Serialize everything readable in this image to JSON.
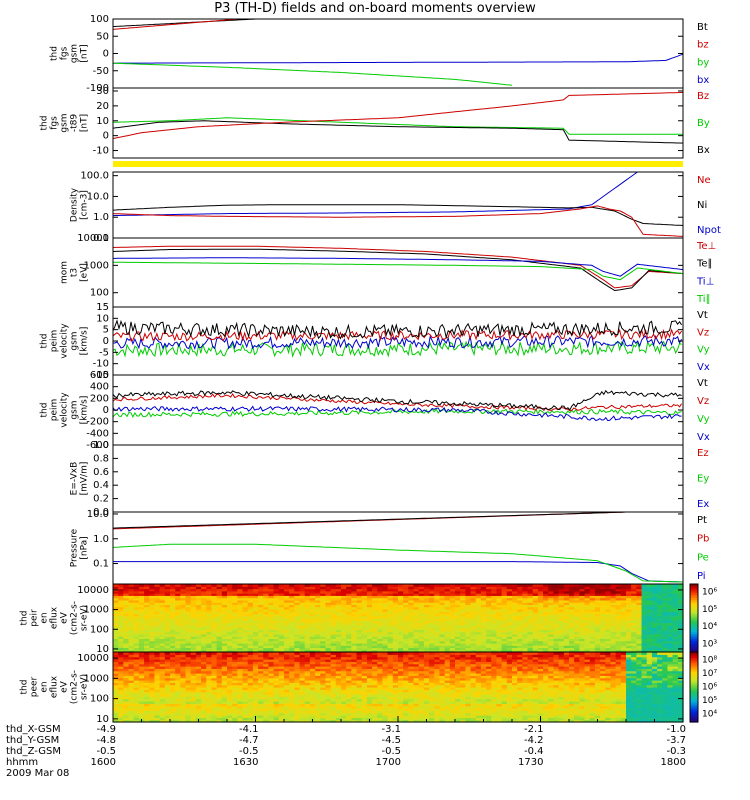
{
  "title": "P3 (TH-D) fields and on-board moments overview",
  "date": "2009 Mar 08",
  "chart_data": [
    {
      "type": "line",
      "ylabel": [
        "thd",
        "fgs",
        "gsm",
        "[nT]"
      ],
      "ylim": [
        -100,
        100
      ],
      "ticks": [
        "100",
        "50",
        "0",
        "-50",
        "-100"
      ],
      "tick_values": [
        100,
        50,
        0,
        -50,
        -100
      ],
      "legend": [
        {
          "name": "Bt",
          "color": "#000000"
        },
        {
          "name": "bz",
          "color": "#cc0000"
        },
        {
          "name": "by",
          "color": "#00cc00"
        },
        {
          "name": "bx",
          "color": "#0000cc"
        }
      ],
      "series": [
        {
          "name": "Bt",
          "color": "#000000",
          "x": [
            0,
            25
          ],
          "values": [
            78,
            100
          ]
        },
        {
          "name": "bz",
          "color": "#cc0000",
          "x": [
            0,
            22
          ],
          "values": [
            70,
            100
          ]
        },
        {
          "name": "bx",
          "color": "#0000cc",
          "x": [
            0,
            90,
            97,
            100
          ],
          "values": [
            -28,
            -24,
            -20,
            -2
          ]
        },
        {
          "name": "by",
          "color": "#00cc00",
          "x": [
            0,
            20,
            40,
            60,
            70
          ],
          "values": [
            -28,
            -40,
            -55,
            -75,
            -92
          ]
        }
      ]
    },
    {
      "type": "line",
      "ylabel": [
        "thd",
        "fgs",
        "gsm",
        "-t89",
        "[nT]"
      ],
      "ylim": [
        -15,
        32
      ],
      "ticks": [
        "30",
        "20",
        "10",
        "0",
        "-10"
      ],
      "tick_values": [
        30,
        20,
        10,
        0,
        -10
      ],
      "legend": [
        {
          "name": "Bz",
          "color": "#cc0000"
        },
        {
          "name": "By",
          "color": "#00cc00"
        },
        {
          "name": "Bx",
          "color": "#000000"
        }
      ],
      "series": [
        {
          "name": "By",
          "color": "#00cc00",
          "x": [
            0,
            10,
            20,
            40,
            60,
            79,
            80,
            100
          ],
          "values": [
            9,
            10,
            12,
            9,
            6,
            5,
            1,
            1
          ]
        },
        {
          "name": "Bx",
          "color": "#000000",
          "x": [
            0,
            8,
            16,
            30,
            50,
            70,
            79,
            80,
            100
          ],
          "values": [
            5,
            9,
            10,
            8,
            6,
            5,
            4,
            -3,
            -5
          ]
        },
        {
          "name": "Bz",
          "color": "#cc0000",
          "x": [
            0,
            5,
            15,
            30,
            50,
            70,
            79,
            80,
            90,
            100
          ],
          "values": [
            -2,
            2,
            6,
            9,
            12,
            20,
            24,
            27,
            28,
            29
          ]
        }
      ]
    },
    {
      "type": "line",
      "scale": "log",
      "ylabel": [
        "Density",
        "[cm-3]"
      ],
      "ylim": [
        0.1,
        150
      ],
      "ticks": [
        "100.0",
        "10.0",
        "1.0",
        "0.1"
      ],
      "tick_values": [
        100,
        10,
        1,
        0.1
      ],
      "legend": [
        {
          "name": "Ne",
          "color": "#cc0000"
        },
        {
          "name": "Ni",
          "color": "#000000"
        },
        {
          "name": "Npot",
          "color": "#0000cc"
        }
      ],
      "series": [
        {
          "name": "Npot",
          "color": "#0000cc",
          "x": [
            0,
            20,
            40,
            60,
            80,
            84,
            92
          ],
          "values": [
            1.2,
            1.5,
            1.6,
            1.8,
            2.5,
            4,
            150
          ]
        },
        {
          "name": "Ni",
          "color": "#000000",
          "x": [
            0,
            10,
            20,
            30,
            40,
            50,
            60,
            70,
            80,
            84,
            88,
            91,
            93,
            100
          ],
          "values": [
            2.2,
            3,
            3.8,
            4,
            4,
            4,
            3.6,
            3.2,
            2.8,
            3,
            2,
            0.8,
            0.5,
            0.4
          ]
        },
        {
          "name": "Ne",
          "color": "#cc0000",
          "x": [
            0,
            10,
            20,
            40,
            60,
            75,
            82,
            85,
            87,
            89,
            91,
            93,
            100
          ],
          "values": [
            1.5,
            1.2,
            1.1,
            1.0,
            1.1,
            1.5,
            2.5,
            3.5,
            2.5,
            2,
            1,
            0.15,
            0.12
          ]
        }
      ]
    },
    {
      "type": "line",
      "scale": "log",
      "ylabel": [
        "mom",
        "t3",
        "[eV]"
      ],
      "ylim": [
        30,
        10000
      ],
      "ticks": [
        "10000",
        "1000",
        "100"
      ],
      "tick_values": [
        10000,
        1000,
        100
      ],
      "legend": [
        {
          "name": "Te⊥",
          "color": "#cc0000"
        },
        {
          "name": "Te∥",
          "color": "#000000"
        },
        {
          "name": "Ti⊥",
          "color": "#0000cc"
        },
        {
          "name": "Ti∥",
          "color": "#00cc00"
        }
      ],
      "series": [
        {
          "name": "Te⊥",
          "color": "#cc0000",
          "x": [
            0,
            10,
            25,
            40,
            55,
            70,
            82,
            86,
            88,
            91,
            94,
            100
          ],
          "values": [
            4500,
            5000,
            5000,
            4200,
            3200,
            2000,
            1000,
            300,
            150,
            180,
            600,
            500
          ]
        },
        {
          "name": "Te∥",
          "color": "#000000",
          "x": [
            0,
            10,
            25,
            40,
            55,
            70,
            82,
            86,
            88,
            91,
            94,
            100
          ],
          "values": [
            3200,
            3800,
            3900,
            3300,
            2600,
            1600,
            800,
            220,
            120,
            150,
            650,
            500
          ]
        },
        {
          "name": "Ti⊥",
          "color": "#0000cc",
          "x": [
            0,
            20,
            40,
            60,
            75,
            84,
            86,
            89,
            92,
            100
          ],
          "values": [
            1800,
            1900,
            1800,
            1600,
            1400,
            1000,
            600,
            400,
            1100,
            700
          ]
        },
        {
          "name": "Ti∥",
          "color": "#00cc00",
          "x": [
            0,
            20,
            40,
            60,
            75,
            84,
            86,
            89,
            92,
            100
          ],
          "values": [
            1300,
            1200,
            1100,
            1000,
            900,
            700,
            400,
            300,
            800,
            500
          ]
        }
      ]
    },
    {
      "type": "line",
      "noisy": true,
      "ylabel": [
        "thd",
        "peim",
        "velocity",
        "gsm",
        "[km/s]"
      ],
      "ylim": [
        -15,
        15
      ],
      "ticks": [
        "15",
        "10",
        "5",
        "0",
        "-5",
        "-10",
        "-15"
      ],
      "tick_values": [
        15,
        10,
        5,
        0,
        -5,
        -10,
        -15
      ],
      "legend": [
        {
          "name": "Vt",
          "color": "#000000"
        },
        {
          "name": "Vz",
          "color": "#cc0000"
        },
        {
          "name": "Vy",
          "color": "#00cc00"
        },
        {
          "name": "Vx",
          "color": "#0000cc"
        }
      ],
      "series": [
        {
          "name": "Vy",
          "color": "#00cc00",
          "x": [
            0,
            100
          ],
          "values": [
            -4,
            -3
          ],
          "noise": 3
        },
        {
          "name": "Vx",
          "color": "#0000cc",
          "x": [
            0,
            100
          ],
          "values": [
            -1,
            0
          ],
          "noise": 2.5
        },
        {
          "name": "Vz",
          "color": "#cc0000",
          "x": [
            0,
            100
          ],
          "values": [
            2,
            3
          ],
          "noise": 2
        },
        {
          "name": "Vt",
          "color": "#000000",
          "x": [
            0,
            40,
            100
          ],
          "values": [
            6,
            4,
            6
          ],
          "noise": 3
        }
      ]
    },
    {
      "type": "line",
      "noisy": true,
      "ylabel": [
        "thd",
        "peim",
        "velocity",
        "gsm",
        "[km/s]"
      ],
      "ylim": [
        -600,
        600
      ],
      "ticks": [
        "600",
        "400",
        "200",
        "0",
        "-200",
        "-400",
        "-600"
      ],
      "tick_values": [
        600,
        400,
        200,
        0,
        -200,
        -400,
        -600
      ],
      "legend": [
        {
          "name": "Vt",
          "color": "#000000"
        },
        {
          "name": "Vz",
          "color": "#cc0000"
        },
        {
          "name": "Vy",
          "color": "#00cc00"
        },
        {
          "name": "Vx",
          "color": "#0000cc"
        }
      ],
      "series": [
        {
          "name": "Vy",
          "color": "#00cc00",
          "x": [
            0,
            30,
            60,
            86,
            100
          ],
          "values": [
            -80,
            -60,
            -20,
            -30,
            -50
          ],
          "noise": 40
        },
        {
          "name": "Vx",
          "color": "#0000cc",
          "x": [
            0,
            30,
            60,
            86,
            100
          ],
          "values": [
            20,
            20,
            0,
            -150,
            -100
          ],
          "noise": 40
        },
        {
          "name": "Vz",
          "color": "#cc0000",
          "x": [
            0,
            20,
            50,
            80,
            86,
            100
          ],
          "values": [
            180,
            250,
            100,
            10,
            50,
            80
          ],
          "noise": 30
        },
        {
          "name": "Vt",
          "color": "#000000",
          "x": [
            0,
            20,
            50,
            80,
            86,
            100
          ],
          "values": [
            250,
            300,
            150,
            30,
            300,
            250
          ],
          "noise": 40
        }
      ]
    },
    {
      "type": "line",
      "ylabel": [
        "E=-VxB",
        "[mV/m]"
      ],
      "ylim": [
        0,
        1
      ],
      "ticks": [
        "1.0",
        "0.8",
        "0.6",
        "0.4",
        "0.2",
        "0.0"
      ],
      "tick_values": [
        1,
        0.8,
        0.6,
        0.4,
        0.2,
        0
      ],
      "legend": [
        {
          "name": "Ez",
          "color": "#cc0000"
        },
        {
          "name": "Ey",
          "color": "#00cc00"
        },
        {
          "name": "Ex",
          "color": "#0000cc"
        }
      ],
      "series": []
    },
    {
      "type": "line",
      "scale": "log",
      "ylabel": [
        "Pressure",
        "[nPa]"
      ],
      "ylim": [
        0.015,
        12
      ],
      "ticks": [
        "10.0",
        "1.0",
        "0.1"
      ],
      "tick_values": [
        10,
        1,
        0.1
      ],
      "legend": [
        {
          "name": "Pt",
          "color": "#000000"
        },
        {
          "name": "Pb",
          "color": "#cc0000"
        },
        {
          "name": "Pe",
          "color": "#00cc00"
        },
        {
          "name": "Pi",
          "color": "#0000cc"
        }
      ],
      "series": [
        {
          "name": "Pi",
          "color": "#0000cc",
          "x": [
            0,
            40,
            70,
            85,
            89,
            91,
            94,
            100
          ],
          "values": [
            0.12,
            0.12,
            0.12,
            0.11,
            0.08,
            0.04,
            0.02,
            0.018
          ]
        },
        {
          "name": "Pe",
          "color": "#00cc00",
          "x": [
            0,
            10,
            25,
            50,
            70,
            85,
            90,
            93,
            100
          ],
          "values": [
            0.45,
            0.6,
            0.6,
            0.35,
            0.25,
            0.13,
            0.05,
            0.02,
            0.018
          ]
        },
        {
          "name": "Pb",
          "color": "#cc0000",
          "x": [
            0,
            90
          ],
          "values": [
            2.5,
            12
          ]
        },
        {
          "name": "Pt",
          "color": "#000000",
          "x": [
            0,
            90
          ],
          "values": [
            2.7,
            12
          ]
        }
      ]
    },
    {
      "type": "heatmap",
      "scale": "log",
      "ylabel": [
        "thd",
        "peir",
        "en",
        "eflux",
        "eV",
        "(cm2-s-",
        "sr-eV)"
      ],
      "ylim": [
        7,
        20000
      ],
      "ticks": [
        "10000",
        "1000",
        "100",
        "10"
      ],
      "tick_values": [
        10000,
        1000,
        100,
        10
      ],
      "colorbar_ticks": [
        "10⁶",
        "10⁵",
        "10⁴",
        "10³"
      ]
    },
    {
      "type": "heatmap",
      "scale": "log",
      "ylabel": [
        "thd",
        "peer",
        "en",
        "eflux",
        "eV",
        "(cm2-s-",
        "sr-eV)"
      ],
      "ylim": [
        7,
        20000
      ],
      "ticks": [
        "10000",
        "1000",
        "100",
        "10"
      ],
      "tick_values": [
        10000,
        1000,
        100,
        10
      ],
      "colorbar_ticks": [
        "10⁸",
        "10⁷",
        "10⁶",
        "10⁵",
        "10⁴"
      ]
    }
  ],
  "x_axis": {
    "row_labels": [
      "thd_X-GSM",
      "thd_Y-GSM",
      "thd_Z-GSM",
      "hhmm"
    ],
    "positions": [
      [
        "-4.9",
        "-4.8",
        "-0.5",
        "1600"
      ],
      [
        "-4.1",
        "-4.7",
        "-0.5",
        "1630"
      ],
      [
        "-3.1",
        "-4.5",
        "-0.5",
        "1700"
      ],
      [
        "-2.1",
        "-4.2",
        "-0.4",
        "1730"
      ],
      [
        "-1.0",
        "-3.7",
        "-0.3",
        "1800"
      ]
    ]
  }
}
